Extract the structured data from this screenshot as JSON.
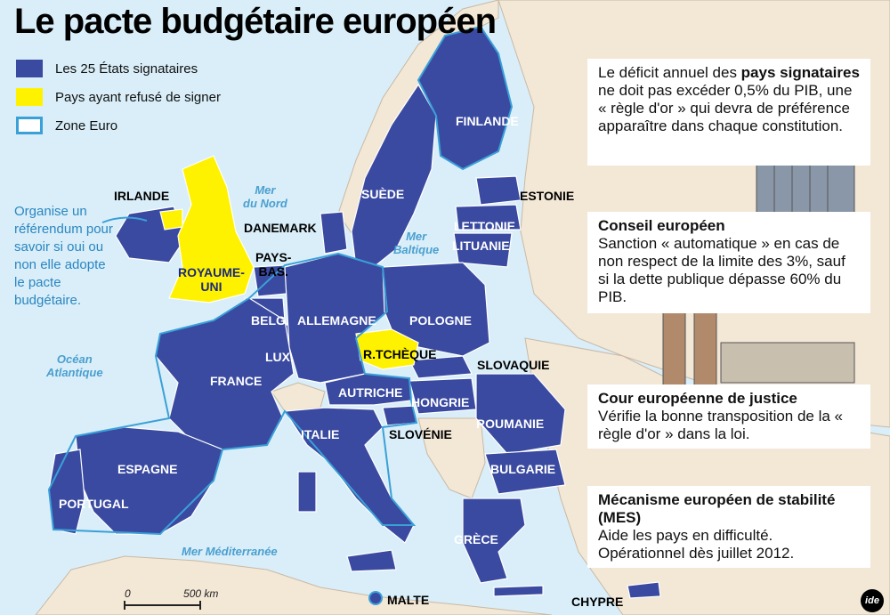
{
  "title": "Le pacte budgétaire européen",
  "legend": [
    {
      "label": "Les 25 États signataires",
      "color": "#3a4aa0"
    },
    {
      "label": "Pays ayant refusé de signer",
      "color": "#fff200"
    },
    {
      "label": "Zone Euro",
      "color": "#3aa0d8"
    }
  ],
  "note": "Organise un référendum pour savoir si oui ou non elle adopte le pacte budgétaire.",
  "countries": {
    "finlande": "FINLANDE",
    "suede": "SUÈDE",
    "estonie": "ESTONIE",
    "lettonie": "LETTONIE",
    "lituanie": "LITUANIE",
    "irlande": "IRLANDE",
    "danemark": "DANEMARK",
    "pays_bas": "PAYS-\nBAS.",
    "royaume_uni": "ROYAUME-\nUNI",
    "belg": "BELG.",
    "allemagne": "ALLEMAGNE",
    "pologne": "POLOGNE",
    "lux": "LUX.",
    "rtcheque": "R.TCHÈQUE",
    "slovaquie": "SLOVAQUIE",
    "france": "FRANCE",
    "autriche": "AUTRICHE",
    "hongrie": "HONGRIE",
    "roumanie": "ROUMANIE",
    "italie": "ITALIE",
    "slovenie": "SLOVÉNIE",
    "espagne": "ESPAGNE",
    "bulgarie": "BULGARIE",
    "portugal": "PORTUGAL",
    "grece": "GRÈCE",
    "malte": "MALTE",
    "chypre": "CHYPRE"
  },
  "seas": {
    "nord": "Mer\ndu Nord",
    "baltique": "Mer\nBaltique",
    "atlantique": "Océan\nAtlantique",
    "med": "Mer Méditerranée"
  },
  "panels": {
    "p1_pre": "Le déficit annuel des ",
    "p1_bold": "pays signataires",
    "p1_post": " ne doit pas excéder 0,5% du PIB, une « règle d'or » qui devra de préférence apparaître dans chaque constitution.",
    "p2_title": "Conseil européen",
    "p2_body": "Sanction « automatique » en cas de non respect de la limite des 3%, sauf si la dette publique dépasse 60% du PIB.",
    "p3_title": "Cour européenne de justice",
    "p3_body": "Vérifie la bonne transposition de la « règle d'or » dans la loi.",
    "p4_title": "Mécanisme européen de stabilité (MES)",
    "p4_body": "Aide les pays en difficulté. Opérationnel dès juillet 2012."
  },
  "scale": {
    "zero": "0",
    "label": "500 km"
  },
  "logo": "ide",
  "colors": {
    "signatory": "#3a4aa0",
    "refused": "#fff200",
    "euro_border": "#3aa0d8",
    "land_other": "#f3e7d6",
    "sea": "#d9eef8"
  }
}
